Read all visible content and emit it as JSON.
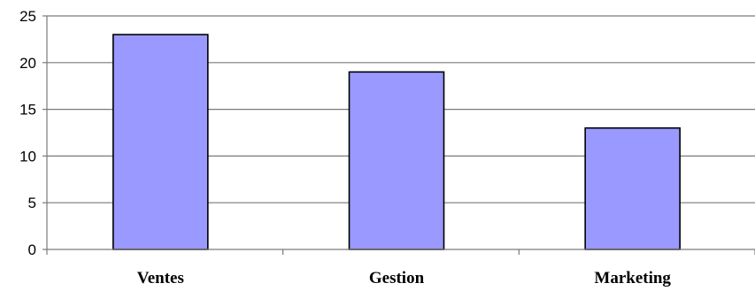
{
  "chart_data": {
    "type": "bar",
    "title": "",
    "xlabel": "",
    "ylabel": "",
    "categories": [
      "Ventes",
      "Gestion",
      "Marketing"
    ],
    "values": [
      23,
      19,
      13
    ],
    "ylim": [
      0,
      25
    ],
    "yticks": [
      0,
      5,
      10,
      15,
      20,
      25
    ],
    "ytick_labels": [
      "0",
      "5",
      "10",
      "15",
      "20",
      "25"
    ],
    "grid": true,
    "legend": "none",
    "bar_color": "#9999ff",
    "bar_edge_color": "#000000"
  }
}
